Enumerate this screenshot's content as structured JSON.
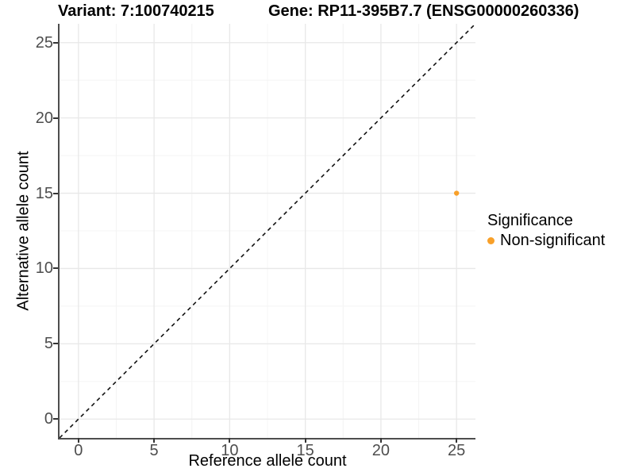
{
  "figure": {
    "title_left": "Variant: 7:100740215",
    "title_right": "Gene: RP11-395B7.7 (ENSG00000260336)"
  },
  "chart_data": {
    "type": "scatter",
    "title": "Variant: 7:100740215 / Gene: RP11-395B7.7 (ENSG00000260336)",
    "xlabel": "Reference allele count",
    "ylabel": "Alternative allele count",
    "xlim": [
      -1.25,
      26.25
    ],
    "ylim": [
      -1.25,
      26.25
    ],
    "x_ticks": [
      0,
      5,
      10,
      15,
      20,
      25
    ],
    "y_ticks": [
      0,
      5,
      10,
      15,
      20,
      25
    ],
    "x_minor_ticks": [
      2.5,
      7.5,
      12.5,
      17.5,
      22.5
    ],
    "y_minor_ticks": [
      2.5,
      7.5,
      12.5,
      17.5,
      22.5
    ],
    "grid": true,
    "points": [
      {
        "x": 25,
        "y": 15,
        "series": "Non-significant"
      }
    ],
    "reference_line": {
      "type": "identity",
      "style": "dashed",
      "from": [
        -1.25,
        -1.25
      ],
      "to": [
        26.25,
        26.25
      ]
    },
    "legend": {
      "title": "Significance",
      "position": "right",
      "entries": [
        {
          "label": "Non-significant",
          "color": "#F8A029",
          "marker": "circle"
        }
      ]
    },
    "colors": {
      "point": "#F8A029",
      "grid_major": "#e8e8e8",
      "grid_minor": "#f4f4f4",
      "axis_line": "#4d4d4d",
      "tick_mark": "#333333",
      "tick_label": "#4d4d4d",
      "dashed_line": "#111111",
      "background": "#ffffff"
    }
  }
}
